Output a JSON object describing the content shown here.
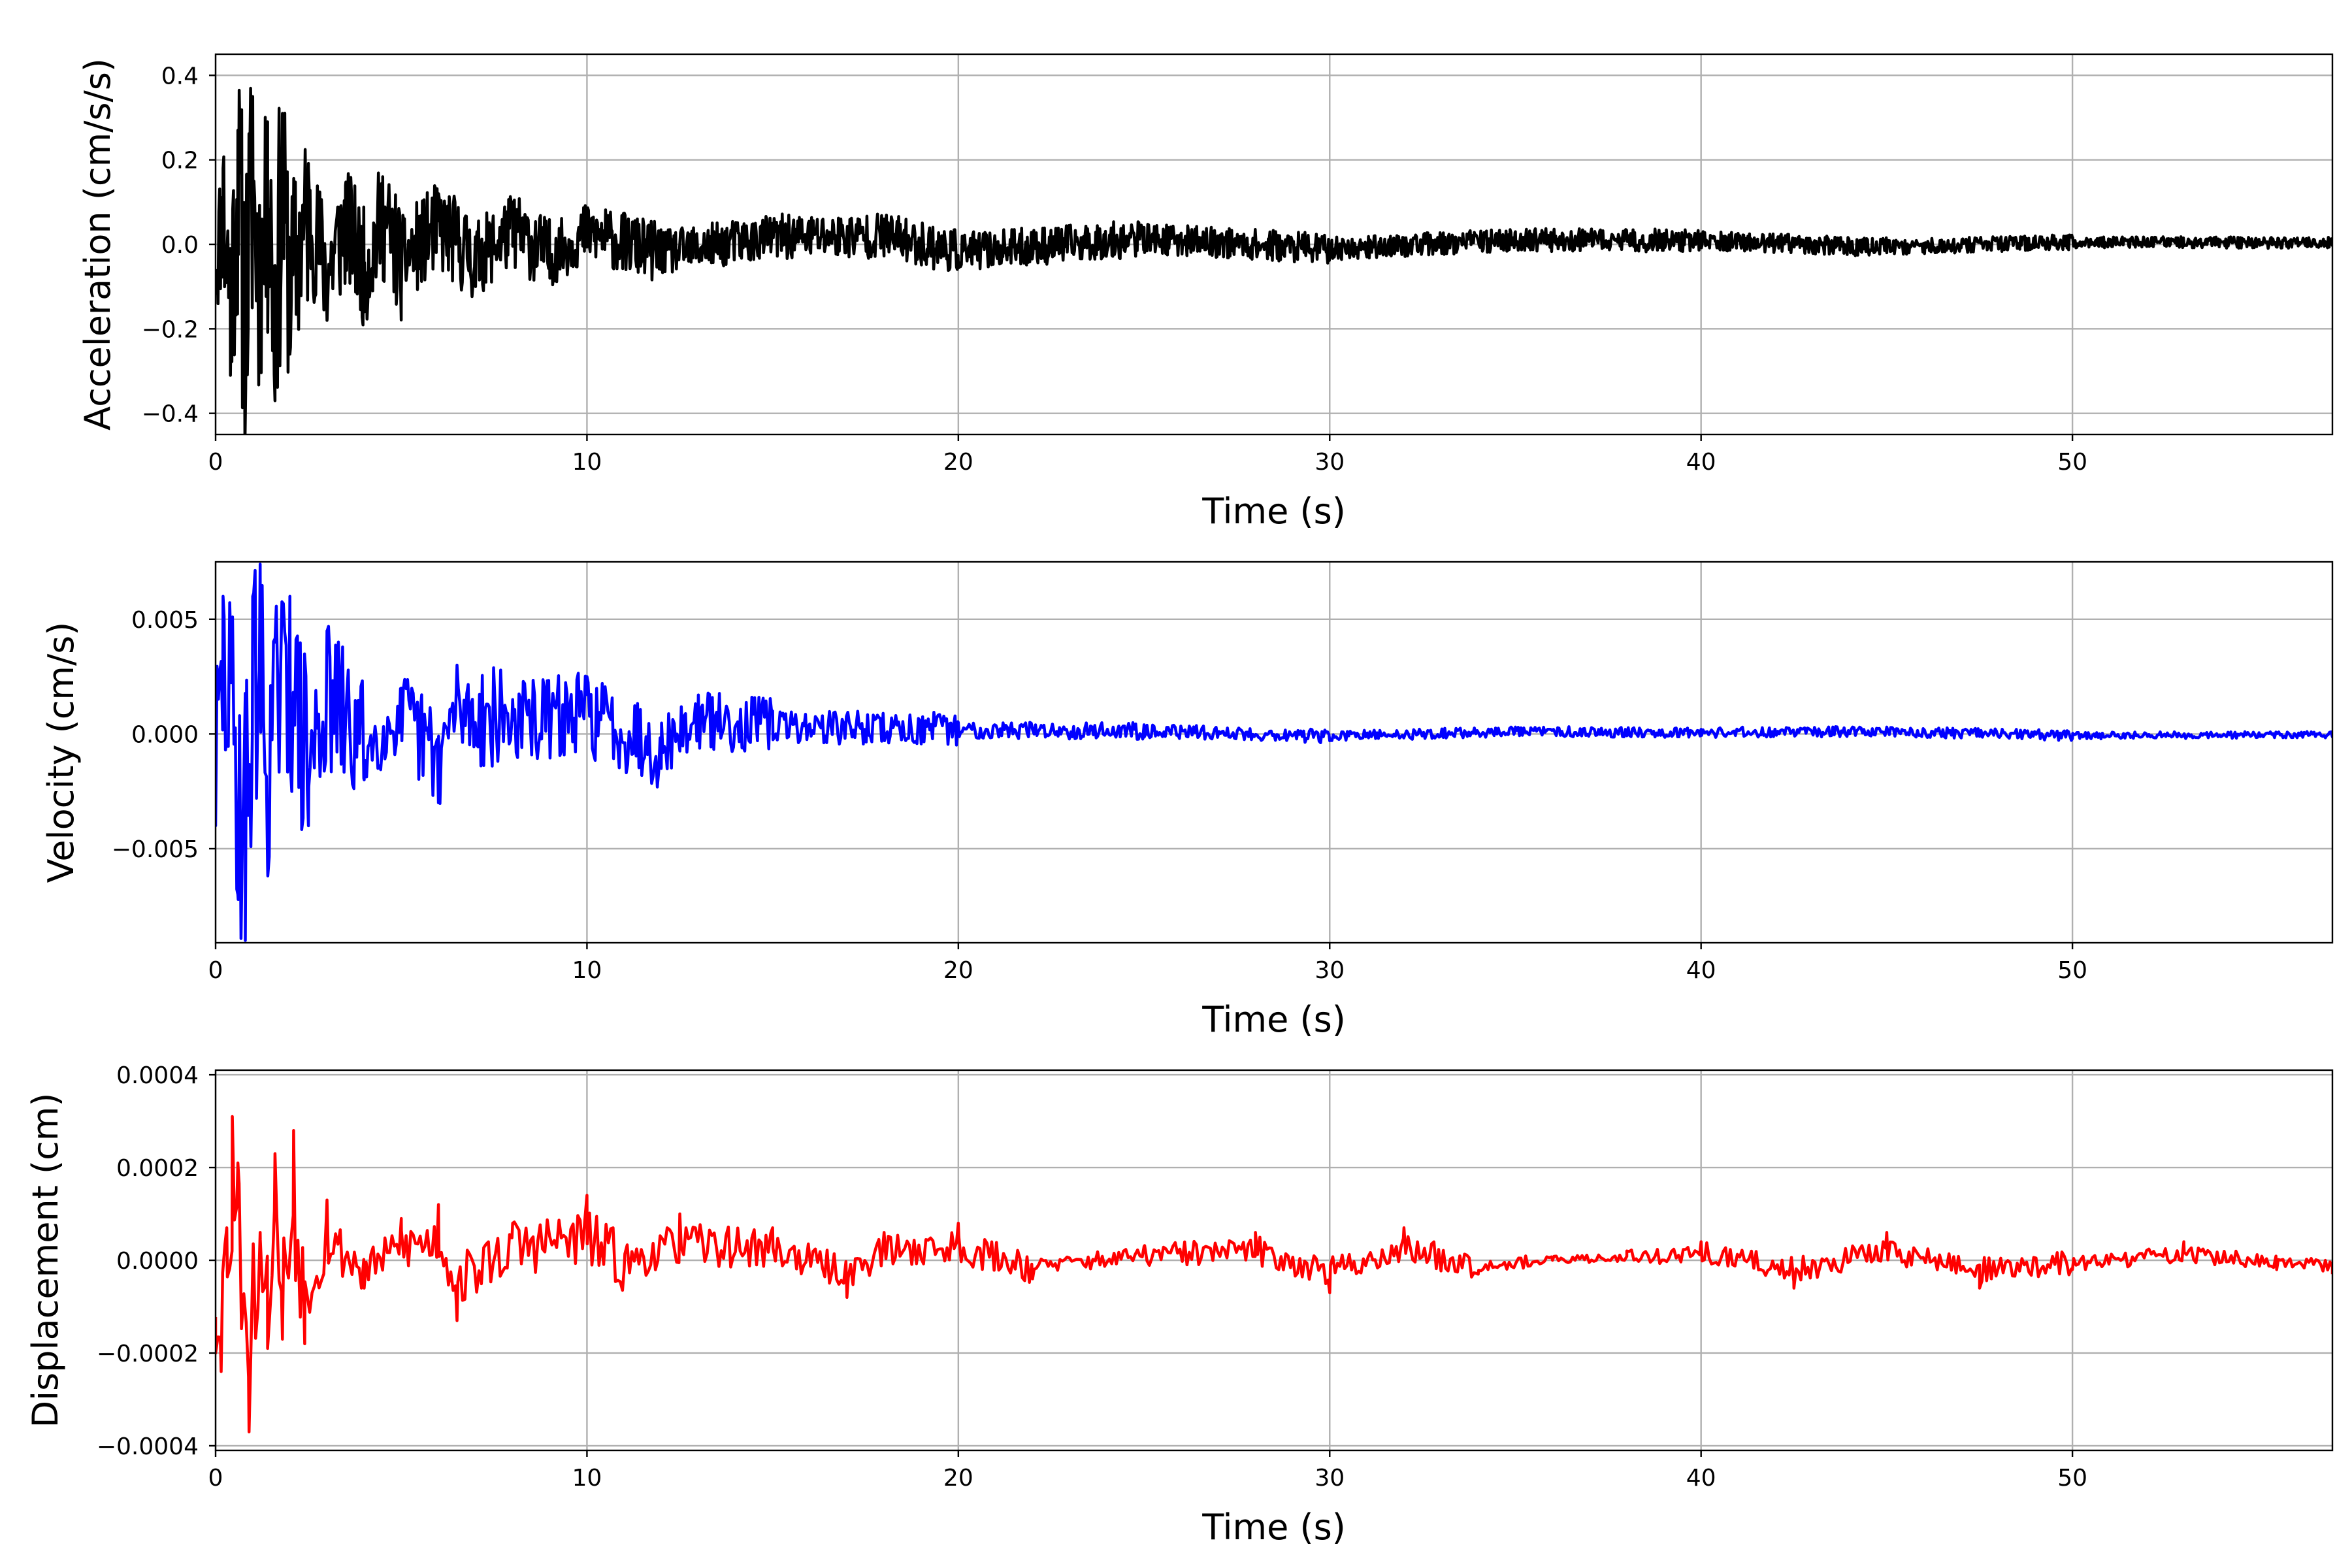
{
  "chart_data": [
    {
      "type": "line",
      "xlabel": "Time (s)",
      "ylabel": "Acceleration (cm/s/s)",
      "xlim": [
        0,
        57
      ],
      "ylim": [
        -0.45,
        0.45
      ],
      "xticks": [
        0,
        10,
        20,
        30,
        40,
        50
      ],
      "xtick_labels": [
        "0",
        "10",
        "20",
        "30",
        "40",
        "50"
      ],
      "yticks": [
        -0.4,
        -0.2,
        0.0,
        0.2,
        0.4
      ],
      "ytick_labels": [
        "−0.4",
        "−0.2",
        "0.0",
        "0.2",
        "0.4"
      ],
      "grid": true,
      "series": [
        {
          "color": "#000000",
          "x": [
            0,
            0.2,
            0.4,
            0.6,
            0.8,
            1.0,
            1.2,
            1.4,
            1.6,
            1.8,
            2.0,
            2.5,
            3.0,
            3.5,
            4.0,
            4.5,
            5.0,
            6.0,
            7.0,
            8.0,
            9.0,
            10.0,
            12.0,
            15.0,
            18.0,
            20.0,
            25.0,
            30.0,
            35.0,
            40.0,
            45.0,
            50.0,
            57.0
          ],
          "y": [
            -0.1,
            0.18,
            -0.31,
            0.27,
            -0.41,
            0.35,
            -0.25,
            0.29,
            -0.37,
            0.31,
            -0.26,
            0.18,
            -0.18,
            0.14,
            -0.16,
            0.16,
            -0.12,
            0.12,
            -0.1,
            0.1,
            -0.08,
            0.08,
            -0.06,
            0.05,
            0.06,
            -0.05,
            0.04,
            -0.03,
            0.03,
            0.025,
            -0.02,
            0.015,
            0.01
          ]
        }
      ]
    },
    {
      "type": "line",
      "xlabel": "Time (s)",
      "ylabel": "Velocity (cm/s)",
      "xlim": [
        0,
        57
      ],
      "ylim": [
        -0.0091,
        0.0075
      ],
      "xticks": [
        0,
        10,
        20,
        30,
        40,
        50
      ],
      "xtick_labels": [
        "0",
        "10",
        "20",
        "30",
        "40",
        "50"
      ],
      "yticks": [
        -0.005,
        0.0,
        0.005
      ],
      "ytick_labels": [
        "−0.005",
        "0.000",
        "0.005"
      ],
      "grid": true,
      "series": [
        {
          "color": "#0000ff",
          "x": [
            0,
            0.2,
            0.4,
            0.6,
            0.8,
            1.0,
            1.2,
            1.4,
            1.6,
            2.0,
            2.5,
            3.0,
            4.0,
            5.0,
            6.0,
            6.5,
            8.0,
            10.0,
            12.0,
            13.0,
            15.0,
            20.0,
            25.0,
            30.0,
            35.0,
            40.0,
            45.0,
            50.0,
            57.0
          ],
          "y": [
            -0.004,
            0.006,
            0.0045,
            -0.007,
            -0.009,
            0.006,
            0.0074,
            -0.0058,
            0.004,
            0.006,
            -0.004,
            0.0045,
            -0.002,
            0.002,
            -0.003,
            0.003,
            0.0015,
            0.0025,
            -0.0015,
            0.0017,
            0.001,
            0.0005,
            0.0004,
            -0.0003,
            0.0003,
            0.0002,
            0.0003,
            -0.0002,
            -0.0001
          ]
        }
      ]
    },
    {
      "type": "line",
      "xlabel": "Time (s)",
      "ylabel": "Displacement (cm)",
      "xlim": [
        0,
        57
      ],
      "ylim": [
        -0.00041,
        0.00041
      ],
      "xticks": [
        0,
        10,
        20,
        30,
        40,
        50
      ],
      "xtick_labels": [
        "0",
        "10",
        "20",
        "30",
        "40",
        "50"
      ],
      "yticks": [
        -0.0004,
        -0.0002,
        0.0,
        0.0002,
        0.0004
      ],
      "ytick_labels": [
        "−0.0004",
        "−0.0002",
        "0.0000",
        "0.0002",
        "0.0004"
      ],
      "grid": true,
      "series": [
        {
          "color": "#ff0000",
          "x": [
            0,
            0.15,
            0.3,
            0.45,
            0.6,
            0.9,
            1.2,
            1.4,
            1.6,
            1.8,
            2.1,
            2.4,
            3.0,
            4.0,
            5.0,
            6.0,
            6.5,
            8.0,
            10.0,
            11.0,
            12.5,
            15.0,
            17.0,
            18.0,
            20.0,
            22.0,
            25.0,
            28.0,
            30.0,
            32.0,
            34.0,
            36.0,
            38.0,
            40.0,
            42.5,
            45.0,
            47.5,
            50.0,
            53.0,
            55.5,
            57.0
          ],
          "y": [
            -0.0002,
            -0.00024,
            7e-05,
            0.00031,
            0.00021,
            -0.00037,
            6e-05,
            -0.00019,
            0.00023,
            -0.00017,
            0.00028,
            -0.00018,
            0.00013,
            -6e-05,
            9e-05,
            0.00012,
            -0.00013,
            8e-05,
            0.00014,
            -2e-05,
            0.0001,
            7e-05,
            -8e-05,
            6e-05,
            8e-05,
            -4e-05,
            3e-05,
            6e-05,
            -7e-05,
            7e-05,
            -3e-05,
            0.0,
            2e-05,
            4e-05,
            -6e-05,
            6e-05,
            -6e-05,
            -2e-05,
            4e-05,
            -2e-05,
            -3e-05
          ]
        }
      ]
    }
  ]
}
